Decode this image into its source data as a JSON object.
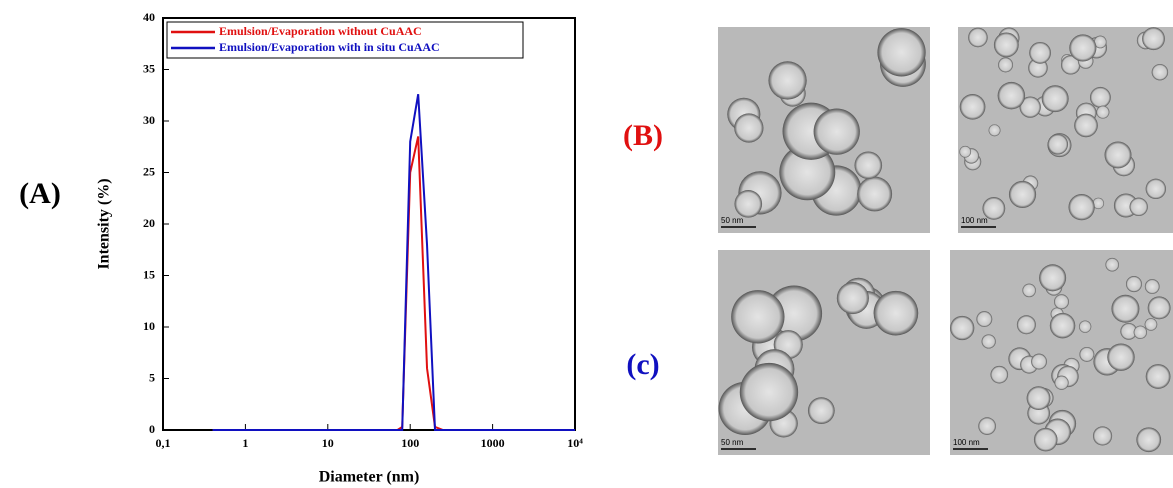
{
  "chart_data": {
    "type": "line",
    "xlabel": "Diameter (nm)",
    "ylabel": "Intensity (%)",
    "xscale": "log",
    "xlim": [
      0.1,
      10000
    ],
    "ylim": [
      0,
      40
    ],
    "xticks": [
      {
        "value": 0.1,
        "label": "0,1"
      },
      1,
      10,
      100,
      1000,
      {
        "value": 10000,
        "label": "10⁴"
      }
    ],
    "yticks": [
      0,
      5,
      10,
      15,
      20,
      25,
      30,
      35,
      40
    ],
    "legend": "upper left",
    "x": [
      0.4,
      1,
      10,
      70,
      80,
      100,
      125,
      160,
      200,
      250,
      1000,
      10000
    ],
    "series": [
      {
        "name": "Emulsion/Evaporation without CuAAC",
        "color": "#e01010",
        "values": [
          0,
          0,
          0,
          0,
          0.3,
          25,
          28.5,
          6,
          0.3,
          0,
          0,
          0
        ]
      },
      {
        "name": "Emulsion/Evaporation with in situ CuAAC",
        "color": "#1010c0",
        "values": [
          0,
          0,
          0,
          0,
          0,
          28,
          32.6,
          18,
          0,
          0,
          0,
          0
        ]
      }
    ]
  },
  "panels": {
    "a": "(A)",
    "b": "(B)",
    "c": "(c)",
    "images": [
      {
        "scale_bar": "50 nm"
      },
      {
        "scale_bar": "100 nm"
      },
      {
        "scale_bar": "50 nm"
      },
      {
        "scale_bar": "100 nm"
      }
    ]
  }
}
